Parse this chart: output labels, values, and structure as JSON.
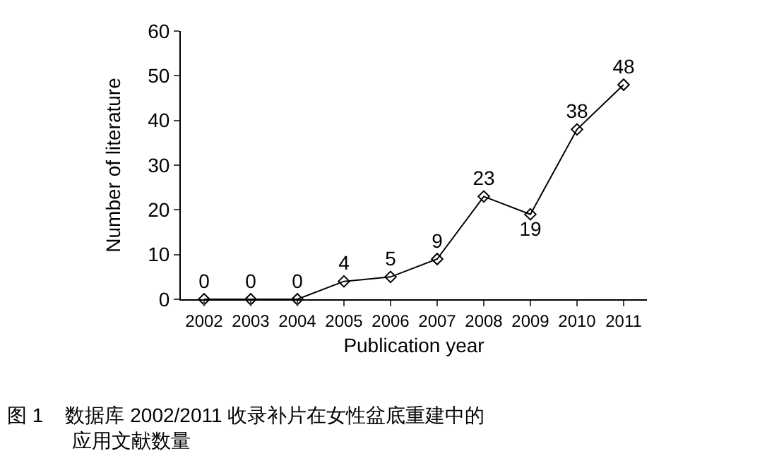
{
  "chart_data": {
    "type": "line",
    "xlabel": "Publication year",
    "ylabel": "Number of literature",
    "categories": [
      "2002",
      "2003",
      "2004",
      "2005",
      "2006",
      "2007",
      "2008",
      "2009",
      "2010",
      "2011"
    ],
    "series": [
      {
        "color": "#000000",
        "values": [
          0,
          0,
          0,
          4,
          5,
          9,
          23,
          19,
          38,
          48
        ]
      }
    ],
    "ylim": [
      0,
      60
    ],
    "yticks": [
      0,
      10,
      20,
      30,
      40,
      50,
      60
    ],
    "data_labels": true,
    "marker": "diamond",
    "line_style": "solid",
    "legend": false,
    "annotations": [
      "图 1    数据库 2002/2011 收录补片在女性盆底重建中的",
      "应用文献数量"
    ]
  }
}
